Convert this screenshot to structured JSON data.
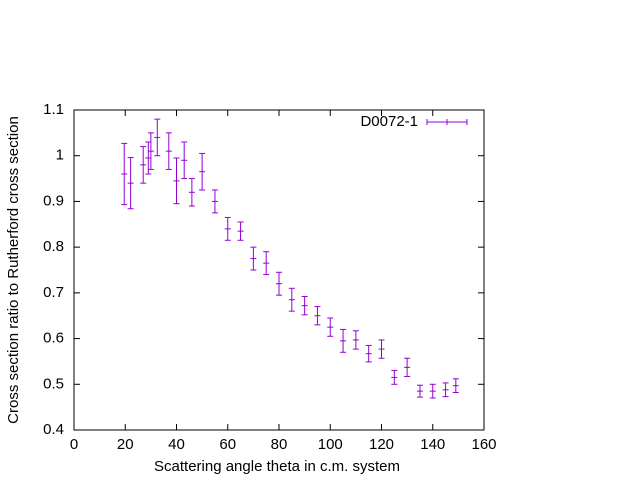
{
  "chart_data": {
    "type": "errorbar",
    "xlabel": "Scattering angle theta in c.m. system",
    "ylabel": "Cross section ratio to Rutherford cross section",
    "xlim": [
      0,
      160
    ],
    "xticks": [
      0,
      20,
      40,
      60,
      80,
      100,
      120,
      140,
      160
    ],
    "ylim": [
      0.4,
      1.1
    ],
    "yticks": [
      0.4,
      0.5,
      0.6,
      0.7,
      0.8,
      0.9,
      1,
      1.1
    ],
    "legend": "top-right",
    "series": [
      {
        "name": "D0072-1",
        "color": "#9400d3",
        "x": [
          19.6,
          22.1,
          27,
          29,
          30,
          32.5,
          37,
          40,
          43,
          46,
          50,
          55,
          60,
          65,
          70,
          75,
          80,
          85,
          90,
          95,
          100,
          105,
          110,
          115,
          120,
          125,
          130,
          135,
          140,
          145,
          149
        ],
        "values": [
          0.96,
          0.94,
          0.98,
          0.995,
          1.01,
          1.04,
          1.01,
          0.945,
          0.99,
          0.92,
          0.965,
          0.9,
          0.84,
          0.835,
          0.775,
          0.765,
          0.72,
          0.685,
          0.672,
          0.65,
          0.625,
          0.595,
          0.597,
          0.567,
          0.577,
          0.515,
          0.537,
          0.485,
          0.485,
          0.488,
          0.497
        ],
        "errors": [
          0.067,
          0.056,
          0.04,
          0.035,
          0.04,
          0.04,
          0.04,
          0.05,
          0.04,
          0.03,
          0.04,
          0.025,
          0.025,
          0.02,
          0.025,
          0.025,
          0.025,
          0.025,
          0.02,
          0.02,
          0.02,
          0.025,
          0.02,
          0.018,
          0.02,
          0.015,
          0.02,
          0.013,
          0.015,
          0.015,
          0.015
        ]
      }
    ]
  }
}
